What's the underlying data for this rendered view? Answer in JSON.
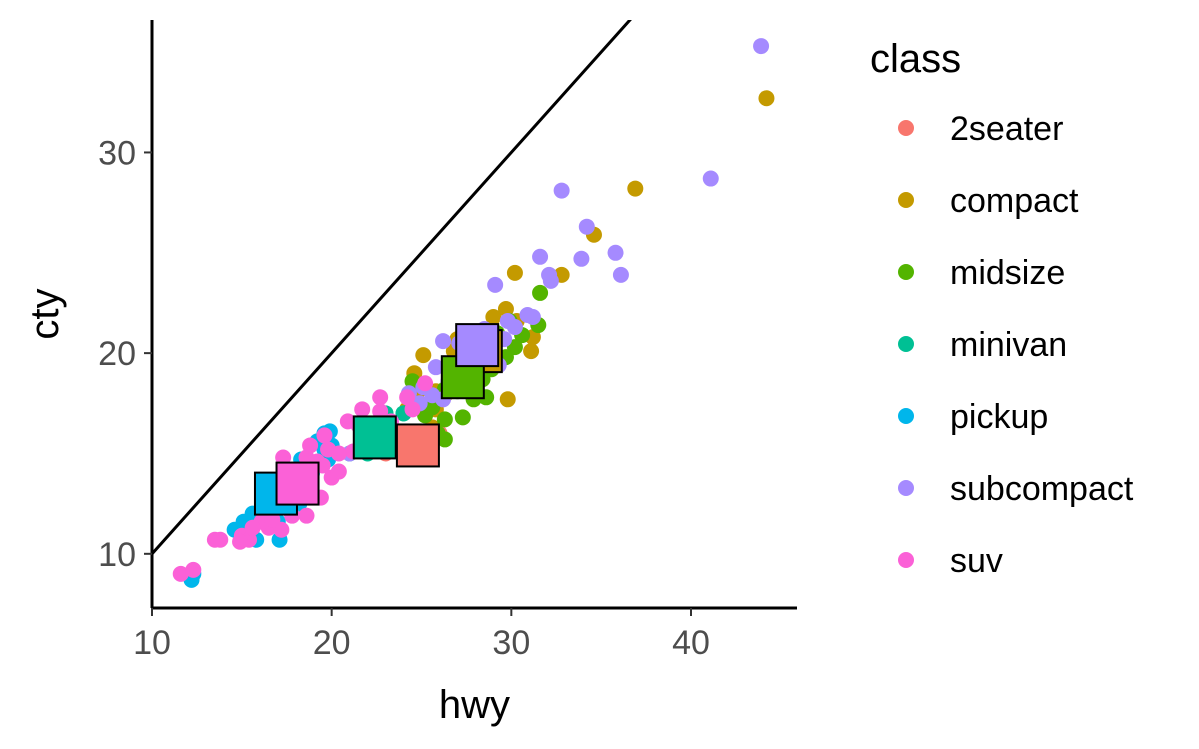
{
  "chart_data": {
    "type": "scatter",
    "xlabel": "hwy",
    "ylabel": "cty",
    "xlim": [
      10,
      45.9
    ],
    "ylim": [
      7.3,
      36.6
    ],
    "x_ticks": [
      10,
      20,
      30,
      40
    ],
    "y_ticks": [
      10,
      20,
      30
    ],
    "grid": false,
    "legend": {
      "title": "class",
      "position": "right"
    },
    "reference_line": {
      "slope": 1,
      "intercept": 0,
      "color": "#000000"
    },
    "series": [
      {
        "name": "2seater",
        "color": "#F8766D",
        "points": [
          [
            26,
            16
          ],
          [
            25,
            15
          ],
          [
            26,
            16
          ],
          [
            24,
            15
          ],
          [
            23,
            15
          ]
        ],
        "mean": [
          24.8,
          15.4
        ]
      },
      {
        "name": "compact",
        "color": "#C49A00",
        "points": [
          [
            44.2,
            32.7
          ],
          [
            36.9,
            28.2
          ],
          [
            34.6,
            25.9
          ],
          [
            32.8,
            23.9
          ],
          [
            30.2,
            24
          ],
          [
            29.7,
            22.2
          ],
          [
            29,
            21.8
          ],
          [
            29,
            20.7
          ],
          [
            28,
            19.5
          ],
          [
            27.3,
            19.3
          ],
          [
            26.3,
            17.9
          ],
          [
            25.8,
            17.2
          ],
          [
            31.1,
            20.1
          ],
          [
            31.2,
            20.8
          ],
          [
            29.8,
            17.7
          ],
          [
            27,
            20.7
          ],
          [
            25.1,
            19.9
          ],
          [
            24.6,
            19
          ],
          [
            25.9,
            17.7
          ],
          [
            27.6,
            19.9
          ],
          [
            28.8,
            21.1
          ],
          [
            30.3,
            21.6
          ],
          [
            26.8,
            20.1
          ],
          [
            24.2,
            17.2
          ],
          [
            25.8,
            18.1
          ],
          [
            26.9,
            19
          ],
          [
            28.2,
            20.3
          ],
          [
            25.6,
            16.3
          ],
          [
            24.8,
            18.1
          ],
          [
            27.4,
            18.9
          ]
        ],
        "mean": [
          28.3,
          20.1
        ]
      },
      {
        "name": "midsize",
        "color": "#53B400",
        "points": [
          [
            31.6,
            23
          ],
          [
            31.5,
            21.4
          ],
          [
            29.9,
            21.6
          ],
          [
            30.6,
            20.9
          ],
          [
            28.7,
            19.8
          ],
          [
            27.3,
            16.8
          ],
          [
            27.9,
            17.7
          ],
          [
            28.6,
            17.8
          ],
          [
            26.3,
            16.7
          ],
          [
            26.3,
            15.7
          ],
          [
            25.2,
            16.9
          ],
          [
            24.5,
            18.6
          ],
          [
            26.3,
            18.2
          ],
          [
            27.9,
            20
          ],
          [
            29.2,
            21
          ],
          [
            30.2,
            20.3
          ],
          [
            25.9,
            16
          ],
          [
            27,
            18.1
          ],
          [
            28.9,
            19.2
          ],
          [
            25.6,
            17.3
          ],
          [
            29.7,
            19.8
          ],
          [
            28.4,
            18.7
          ]
        ],
        "mean": [
          27.3,
          18.8
        ]
      },
      {
        "name": "minivan",
        "color": "#00C094",
        "points": [
          [
            24,
            17
          ],
          [
            22,
            16
          ],
          [
            24,
            17
          ],
          [
            22,
            15
          ],
          [
            21,
            15
          ],
          [
            23,
            16
          ],
          [
            22,
            16
          ],
          [
            23,
            17
          ]
        ],
        "mean": [
          22.4,
          15.8
        ]
      },
      {
        "name": "pickup",
        "color": "#00B6EB",
        "points": [
          [
            12.2,
            8.7
          ],
          [
            12.3,
            9
          ],
          [
            15.6,
            12
          ],
          [
            15.1,
            11.6
          ],
          [
            14.8,
            11.2
          ],
          [
            16.2,
            12.3
          ],
          [
            17,
            11.6
          ],
          [
            17.1,
            10.7
          ],
          [
            18.2,
            12.5
          ],
          [
            18.3,
            14.7
          ],
          [
            19.6,
            16
          ],
          [
            19.6,
            15.2
          ],
          [
            19.8,
            14.7
          ],
          [
            20,
            15.4
          ],
          [
            19.9,
            16.1
          ],
          [
            15.8,
            10.7
          ],
          [
            16.4,
            12.7
          ],
          [
            17.5,
            13.8
          ],
          [
            18.9,
            14
          ],
          [
            16.8,
            13.3
          ],
          [
            14.6,
            11.2
          ],
          [
            17.6,
            12.9
          ],
          [
            19.2,
            15.6
          ],
          [
            18.5,
            13.1
          ]
        ],
        "mean": [
          16.9,
          13
        ]
      },
      {
        "name": "subcompact",
        "color": "#A58AFF",
        "points": [
          [
            43.9,
            35.3
          ],
          [
            41.1,
            28.7
          ],
          [
            32.8,
            28.1
          ],
          [
            34.2,
            26.3
          ],
          [
            35.8,
            25
          ],
          [
            36.1,
            23.9
          ],
          [
            31.6,
            24.8
          ],
          [
            32.2,
            23.6
          ],
          [
            32.1,
            23.9
          ],
          [
            29.1,
            23.4
          ],
          [
            28.5,
            21.2
          ],
          [
            29.3,
            19.4
          ],
          [
            27.1,
            20.5
          ],
          [
            26.2,
            20.6
          ],
          [
            25.8,
            19.3
          ],
          [
            26.2,
            17.7
          ],
          [
            27.9,
            18.6
          ],
          [
            21,
            15
          ],
          [
            22.2,
            15.6
          ],
          [
            24.3,
            18
          ],
          [
            30.9,
            21.9
          ],
          [
            33.9,
            24.7
          ],
          [
            28.7,
            20
          ],
          [
            29.6,
            20.7
          ],
          [
            31.2,
            21.8
          ],
          [
            26.9,
            19.2
          ],
          [
            24.9,
            17.5
          ],
          [
            25.1,
            18.3
          ],
          [
            25.6,
            17.9
          ],
          [
            27,
            19.4
          ],
          [
            27.5,
            18.9
          ],
          [
            28.3,
            20.4
          ],
          [
            30.2,
            21.3
          ],
          [
            26.5,
            18.6
          ],
          [
            29.8,
            21.6
          ]
        ],
        "mean": [
          28.1,
          20.4
        ]
      },
      {
        "name": "suv",
        "color": "#FB61D7",
        "points": [
          [
            11.6,
            9
          ],
          [
            12.3,
            9.2
          ],
          [
            13.8,
            10.7
          ],
          [
            13.5,
            10.7
          ],
          [
            15,
            10.9
          ],
          [
            15.4,
            10.7
          ],
          [
            16.5,
            11.3
          ],
          [
            16.1,
            11.6
          ],
          [
            17.2,
            11.2
          ],
          [
            16.7,
            11.7
          ],
          [
            17.8,
            11.9
          ],
          [
            18.6,
            11.9
          ],
          [
            19.4,
            12.8
          ],
          [
            20,
            13.8
          ],
          [
            19.5,
            14.4
          ],
          [
            18.6,
            14.8
          ],
          [
            19.2,
            14.6
          ],
          [
            17.3,
            14.8
          ],
          [
            19.8,
            15.2
          ],
          [
            21.2,
            15.1
          ],
          [
            21.5,
            16.4
          ],
          [
            20.9,
            16.6
          ],
          [
            22.2,
            16.3
          ],
          [
            22.7,
            17.1
          ],
          [
            21.7,
            17.2
          ],
          [
            25.2,
            18.5
          ],
          [
            24.2,
            17.8
          ],
          [
            23.3,
            16.6
          ],
          [
            22.7,
            17.8
          ],
          [
            24.5,
            17.2
          ],
          [
            23.6,
            15.2
          ],
          [
            19.6,
            15.9
          ],
          [
            18.8,
            15.4
          ],
          [
            20.4,
            15
          ],
          [
            16.9,
            13.6
          ],
          [
            18.5,
            12.9
          ],
          [
            14.9,
            10.6
          ],
          [
            20.4,
            14.1
          ],
          [
            21.8,
            15.2
          ],
          [
            17.5,
            13.1
          ],
          [
            16.4,
            12.4
          ],
          [
            15.6,
            11.3
          ]
        ],
        "mean": [
          18.1,
          13.5
        ]
      }
    ]
  }
}
